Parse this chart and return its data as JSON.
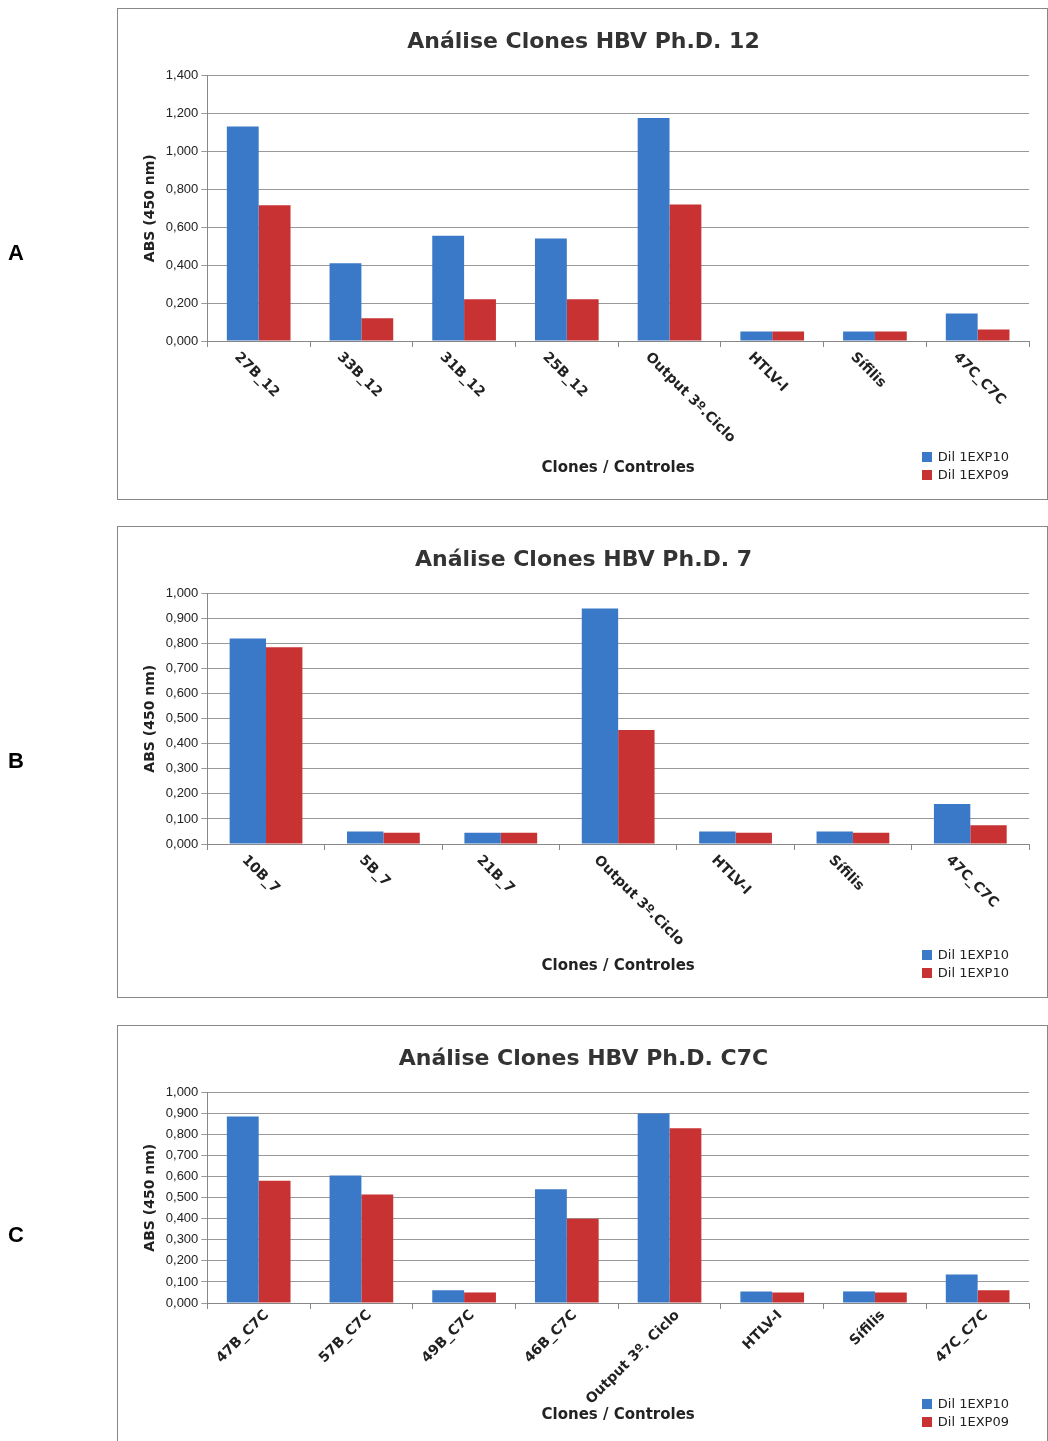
{
  "chart_data": [
    {
      "type": "bar",
      "title": "Análise Clones HBV Ph.D. 12",
      "xlabel": "Clones / Controles",
      "ylabel": "ABS (450 nm)",
      "annotations": [
        "A"
      ],
      "categories": [
        "27B_12",
        "33B_12",
        "31B_12",
        "25B_12",
        "Output 3º.Ciclo",
        "HTLV-I",
        "Sífilis",
        "47C_C7C"
      ],
      "series": [
        {
          "name": "Dil 1EXP10",
          "color": "#3a78c8",
          "values": [
            1.13,
            0.41,
            0.555,
            0.54,
            1.175,
            0.05,
            0.05,
            0.145
          ]
        },
        {
          "name": "Dil 1EXP09",
          "color": "#c83232",
          "values": [
            0.715,
            0.12,
            0.22,
            0.22,
            0.72,
            0.05,
            0.05,
            0.06
          ]
        }
      ],
      "ylim": [
        0,
        1.4
      ],
      "yticks": [
        {
          "value": 0,
          "label": "0,000"
        },
        {
          "value": 0.2,
          "label": "0,200"
        },
        {
          "value": 0.4,
          "label": "0,400"
        },
        {
          "value": 0.6,
          "label": "0,600"
        },
        {
          "value": 0.8,
          "label": "0,800"
        },
        {
          "value": 1,
          "label": "1,000"
        },
        {
          "value": 1.2,
          "label": "1,200"
        },
        {
          "value": 1.4,
          "label": "1,400"
        }
      ],
      "grid": "y",
      "legend": "bottom right"
    },
    {
      "type": "bar",
      "title": "Análise Clones HBV Ph.D. 7",
      "xlabel": "Clones / Controles",
      "ylabel": "ABS (450 nm)",
      "annotations": [
        "B"
      ],
      "categories": [
        "10B_7",
        "5B_7",
        "21B_7",
        "Output 3º.Ciclo",
        "HTLV-I",
        "Sífilis",
        "47C_C7C"
      ],
      "series": [
        {
          "name": "Dil 1EXP10",
          "color": "#3a78c8",
          "values": [
            0.82,
            0.05,
            0.045,
            0.94,
            0.05,
            0.05,
            0.16
          ]
        },
        {
          "name": "Dil 1EXP10",
          "color": "#c83232",
          "values": [
            0.785,
            0.045,
            0.045,
            0.455,
            0.045,
            0.045,
            0.075
          ]
        }
      ],
      "ylim": [
        0,
        1
      ],
      "yticks": [
        {
          "value": 0,
          "label": "0,000"
        },
        {
          "value": 0.1,
          "label": "0,100"
        },
        {
          "value": 0.2,
          "label": "0,200"
        },
        {
          "value": 0.3,
          "label": "0,300"
        },
        {
          "value": 0.4,
          "label": "0,400"
        },
        {
          "value": 0.5,
          "label": "0,500"
        },
        {
          "value": 0.6,
          "label": "0,600"
        },
        {
          "value": 0.7,
          "label": "0,700"
        },
        {
          "value": 0.8,
          "label": "0,800"
        },
        {
          "value": 0.9,
          "label": "0,900"
        },
        {
          "value": 1,
          "label": "1,000"
        }
      ],
      "grid": "y",
      "legend": "bottom right"
    },
    {
      "type": "bar",
      "title": "Análise Clones HBV Ph.D. C7C",
      "xlabel": "Clones / Controles",
      "ylabel": "ABS (450 nm)",
      "annotations": [
        "C"
      ],
      "categories": [
        "47B_C7C",
        "57B_C7C",
        "49B_C7C",
        "46B_C7C",
        "Output 3º. Ciclo",
        "HTLV-I",
        "Sífilis",
        "47C_C7C"
      ],
      "series": [
        {
          "name": "Dil 1EXP10",
          "color": "#3a78c8",
          "values": [
            0.885,
            0.605,
            0.06,
            0.54,
            0.9,
            0.055,
            0.055,
            0.135
          ]
        },
        {
          "name": "Dil 1EXP09",
          "color": "#c83232",
          "values": [
            0.58,
            0.515,
            0.05,
            0.4,
            0.83,
            0.05,
            0.05,
            0.06
          ]
        }
      ],
      "ylim": [
        0,
        1
      ],
      "yticks": [
        {
          "value": 0,
          "label": "0,000"
        },
        {
          "value": 0.1,
          "label": "0,100"
        },
        {
          "value": 0.2,
          "label": "0,200"
        },
        {
          "value": 0.3,
          "label": "0,300"
        },
        {
          "value": 0.4,
          "label": "0,400"
        },
        {
          "value": 0.5,
          "label": "0,500"
        },
        {
          "value": 0.6,
          "label": "0,600"
        },
        {
          "value": 0.7,
          "label": "0,700"
        },
        {
          "value": 0.8,
          "label": "0,800"
        },
        {
          "value": 0.9,
          "label": "0,900"
        },
        {
          "value": 1,
          "label": "1,000"
        }
      ],
      "grid": "y",
      "legend": "bottom right"
    }
  ]
}
